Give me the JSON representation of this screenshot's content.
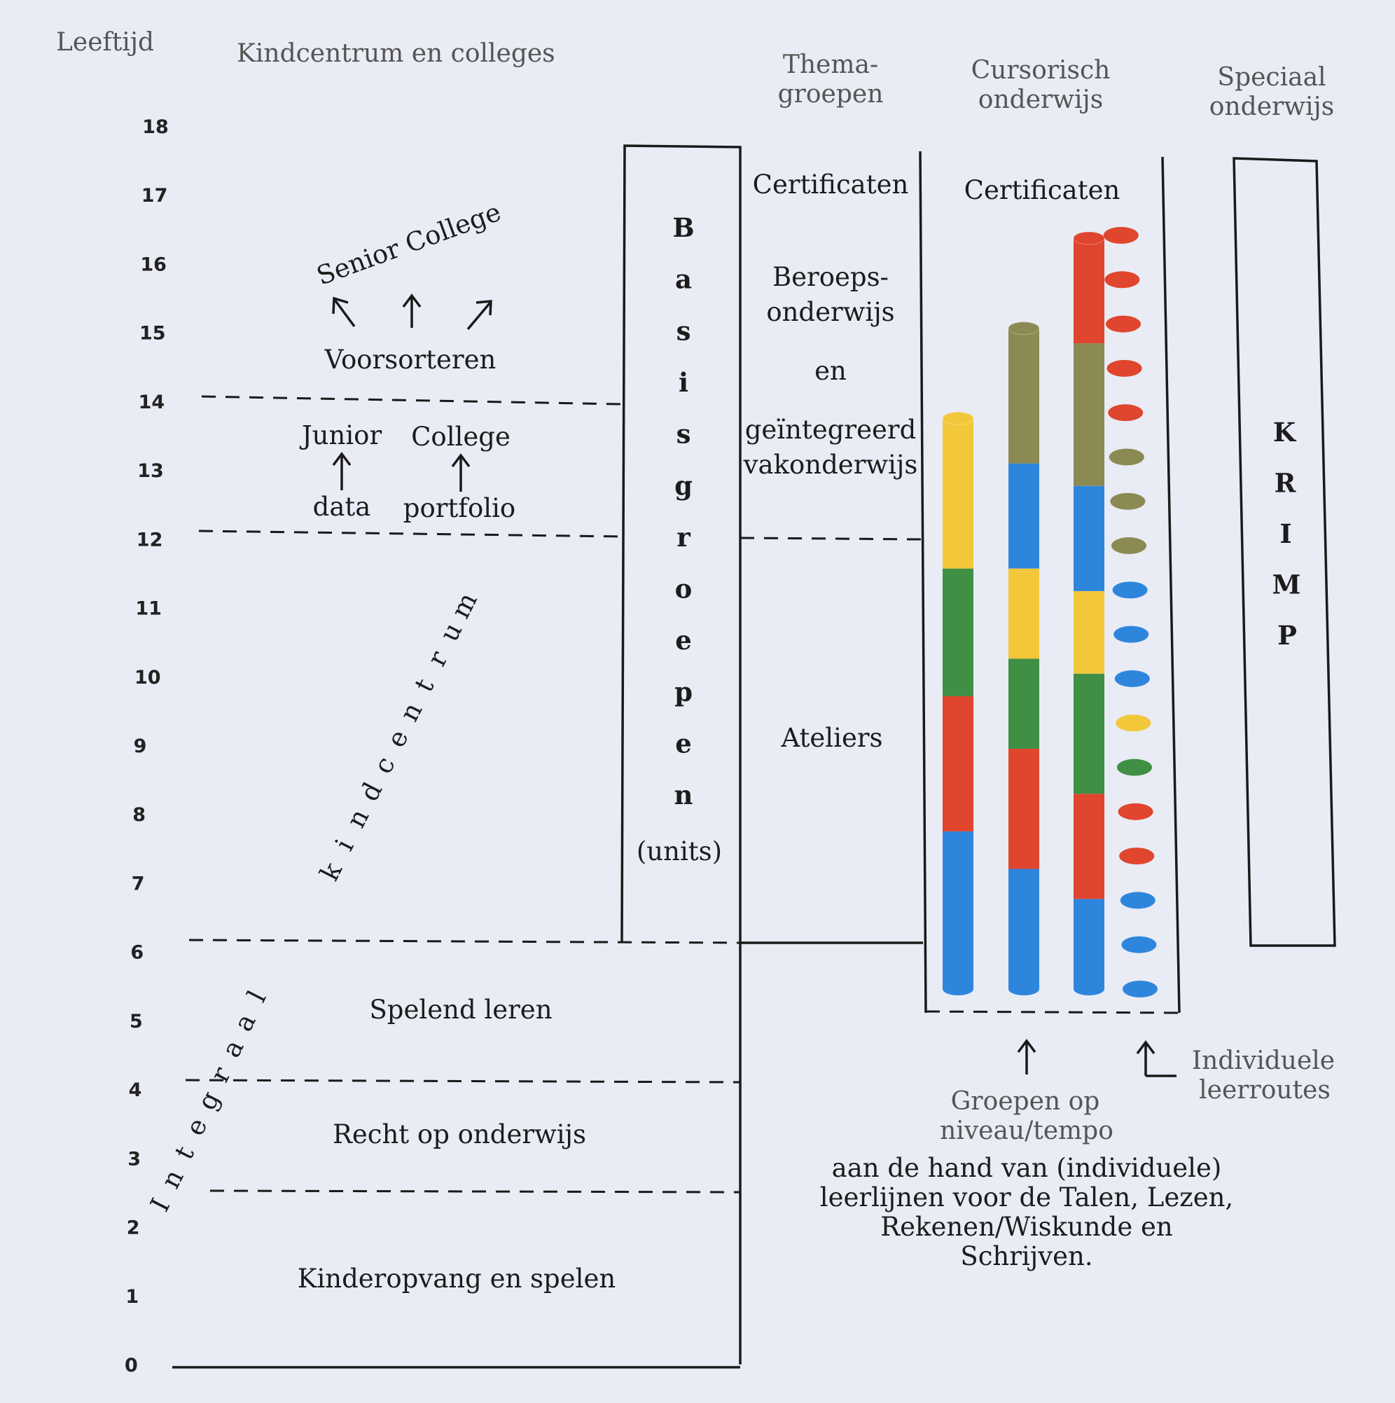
{
  "headers": {
    "leeftijd": "Leeftijd",
    "kindcentrum": "Kindcentrum en colleges",
    "thema": [
      "Thema-",
      "groepen"
    ],
    "cursorisch": [
      "Cursorisch",
      "onderwijs"
    ],
    "speciaal": [
      "Speciaal",
      "onderwijs"
    ]
  },
  "ages": [
    "0",
    "1",
    "2",
    "3",
    "4",
    "5",
    "6",
    "7",
    "8",
    "9",
    "10",
    "11",
    "12",
    "13",
    "14",
    "15",
    "16",
    "17",
    "18"
  ],
  "left_column": {
    "senior_college": "Senior College",
    "voorsorteren": "Voorsorteren",
    "junior": "Junior",
    "college": "College",
    "data": "data",
    "portfolio": "portfolio",
    "kindcentrum_letters": [
      "k",
      "i",
      "n",
      "d",
      "c",
      "e",
      "n",
      "t",
      "r",
      "u",
      "m"
    ],
    "spelend_leren": "Spelend leren",
    "recht": "Recht op onderwijs",
    "kinderopvang": "Kinderopvang en spelen",
    "integraal_letters": [
      "I",
      "n",
      "t",
      "e",
      "g",
      "r",
      "a",
      "a",
      "l"
    ]
  },
  "basisgroepen": {
    "letters": [
      "B",
      "a",
      "s",
      "i",
      "s",
      "g",
      "r",
      "o",
      "e",
      "p",
      "e",
      "n"
    ],
    "units": "(units)"
  },
  "thema_column": {
    "certificaten": "Certificaten",
    "beroeps": [
      "Beroeps-",
      "onderwijs",
      "en",
      "geïntegreerd",
      "vakonderwijs"
    ],
    "ateliers": "Ateliers"
  },
  "cursorisch_column": {
    "certificaten": "Certificaten"
  },
  "krimp_letters": [
    "K",
    "R",
    "I",
    "M",
    "P"
  ],
  "bottom": {
    "groepen": [
      "Groepen op",
      "niveau/tempo"
    ],
    "individuele": [
      "Individuele",
      "leerroutes"
    ],
    "caption": [
      "aan de hand van (individuele)",
      "leerlijnen voor de Talen, Lezen,",
      "Rekenen/Wiskunde en",
      "Schrijven."
    ]
  },
  "colors": {
    "blue": "#2e86dc",
    "red": "#e0452e",
    "green": "#3f8f45",
    "yellow": "#f2c83a",
    "olive": "#8a8a52"
  },
  "bars": [
    {
      "segments": [
        "blue",
        "red",
        "green",
        "yellow"
      ],
      "stops": [
        0,
        0.21,
        0.39,
        0.56,
        0.76
      ]
    },
    {
      "segments": [
        "blue",
        "red",
        "green",
        "yellow",
        "blue",
        "olive"
      ],
      "stops": [
        0,
        0.16,
        0.32,
        0.44,
        0.56,
        0.7,
        0.88
      ]
    },
    {
      "segments": [
        "blue",
        "red",
        "green",
        "yellow",
        "blue",
        "olive",
        "red"
      ],
      "stops": [
        0,
        0.12,
        0.26,
        0.42,
        0.53,
        0.67,
        0.86,
        1.0
      ]
    }
  ],
  "dots": [
    "blue",
    "blue",
    "blue",
    "red",
    "red",
    "green",
    "yellow",
    "blue",
    "blue",
    "blue",
    "olive",
    "olive",
    "olive",
    "red",
    "red",
    "red",
    "red",
    "red"
  ]
}
